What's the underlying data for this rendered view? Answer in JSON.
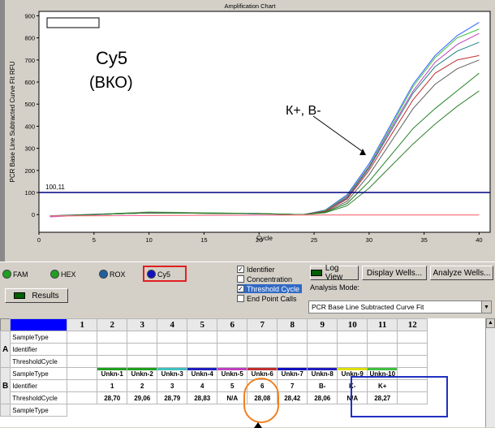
{
  "chart": {
    "title": "Amplification Chart",
    "ylabel": "PCR Base Line Subtracted Curve Fit RFU",
    "xlabel": "Cycle",
    "threshold_label": "100,11",
    "annotation_cy5": "Cy5",
    "annotation_vko": "(ВКО)",
    "annotation_kplus": "К+, В-",
    "colors": {
      "threshold": "#000080",
      "background": "#ffffff"
    }
  },
  "chart_data": {
    "type": "line",
    "xlabel": "Cycle",
    "ylabel": "PCR Base Line Subtracted Curve Fit RFU",
    "xlim": [
      0,
      41
    ],
    "ylim": [
      -80,
      920
    ],
    "x_ticks": [
      0,
      5,
      10,
      15,
      20,
      25,
      30,
      35,
      40
    ],
    "y_ticks": [
      0,
      100,
      200,
      300,
      400,
      500,
      600,
      700,
      800,
      900
    ],
    "threshold": 100.11,
    "series": [
      {
        "color": "#3060ff",
        "x": [
          1,
          10,
          20,
          24,
          26,
          28,
          30,
          32,
          34,
          36,
          38,
          40
        ],
        "y": [
          -5,
          10,
          5,
          0,
          20,
          90,
          230,
          410,
          590,
          720,
          810,
          870
        ]
      },
      {
        "color": "#40c040",
        "x": [
          1,
          10,
          20,
          24,
          26,
          28,
          30,
          32,
          34,
          36,
          38,
          40
        ],
        "y": [
          -8,
          12,
          5,
          0,
          18,
          85,
          220,
          400,
          580,
          710,
          800,
          840
        ]
      },
      {
        "color": "#c040c0",
        "x": [
          1,
          10,
          20,
          24,
          26,
          28,
          30,
          32,
          34,
          36,
          38,
          40
        ],
        "y": [
          -10,
          10,
          3,
          0,
          15,
          80,
          215,
          390,
          560,
          690,
          770,
          820
        ]
      },
      {
        "color": "#208080",
        "x": [
          1,
          10,
          20,
          24,
          26,
          28,
          30,
          32,
          34,
          36,
          38,
          40
        ],
        "y": [
          -6,
          8,
          4,
          0,
          15,
          75,
          210,
          380,
          550,
          670,
          740,
          780
        ]
      },
      {
        "color": "#c03030",
        "x": [
          1,
          10,
          20,
          24,
          26,
          28,
          30,
          32,
          34,
          36,
          38,
          40
        ],
        "y": [
          -6,
          8,
          4,
          0,
          15,
          70,
          200,
          360,
          520,
          640,
          700,
          720
        ]
      },
      {
        "color": "#606060",
        "x": [
          1,
          10,
          20,
          24,
          26,
          28,
          30,
          32,
          34,
          36,
          38,
          40
        ],
        "y": [
          -6,
          8,
          4,
          0,
          12,
          60,
          180,
          330,
          480,
          590,
          660,
          700
        ]
      },
      {
        "color": "#208020",
        "x": [
          1,
          10,
          20,
          24,
          26,
          28,
          30,
          32,
          34,
          36,
          38,
          40
        ],
        "y": [
          -6,
          8,
          4,
          0,
          10,
          50,
          150,
          270,
          390,
          480,
          560,
          640
        ]
      },
      {
        "color": "#308030",
        "x": [
          1,
          10,
          20,
          24,
          26,
          28,
          30,
          32,
          34,
          36,
          38,
          40
        ],
        "y": [
          -6,
          8,
          4,
          0,
          8,
          40,
          120,
          220,
          320,
          410,
          490,
          560
        ]
      },
      {
        "color": "#e0e000",
        "x": [
          1,
          10,
          20,
          24,
          26,
          28,
          30,
          32,
          34,
          36,
          38,
          40
        ],
        "y": [
          -6,
          -4,
          -3,
          -2,
          -1,
          -1,
          -1,
          -1,
          -1,
          -1,
          -1,
          -1
        ]
      },
      {
        "color": "#ff60a0",
        "x": [
          1,
          10,
          20,
          24,
          26,
          28,
          30,
          32,
          34,
          36,
          38,
          40
        ],
        "y": [
          -6,
          -4,
          -3,
          -2,
          -2,
          -2,
          -2,
          -2,
          -2,
          -2,
          -2,
          -2
        ]
      }
    ]
  },
  "channels": [
    {
      "label": "FAM",
      "color": "#20a020"
    },
    {
      "label": "HEX",
      "color": "#20a020"
    },
    {
      "label": "ROX",
      "color": "#2060a0"
    },
    {
      "label": "Cy5",
      "color": "#1010c0"
    }
  ],
  "checkboxes": [
    {
      "label": "Identifier",
      "checked": true
    },
    {
      "label": "Concentration",
      "checked": false
    },
    {
      "label": "Threshold Cycle",
      "checked": true
    },
    {
      "label": "End Point Calls",
      "checked": false
    }
  ],
  "buttons": {
    "log_view": "Log View",
    "display_wells": "Display Wells...",
    "analyze_wells": "Analyze Wells...",
    "results": "Results"
  },
  "analysis_mode": {
    "label": "Analysis Mode:",
    "value": "PCR Base Line Subtracted Curve Fit"
  },
  "table": {
    "plus": "+",
    "columns": [
      "1",
      "2",
      "3",
      "4",
      "5",
      "6",
      "7",
      "8",
      "9",
      "10",
      "11",
      "12"
    ],
    "row_labels": [
      "SampleType",
      "Identifier",
      "ThresholdCycle"
    ],
    "rows": [
      {
        "letter": "A",
        "sample_type": [
          "",
          "",
          "",
          "",
          "",
          "",
          "",
          "",
          "",
          "",
          "",
          ""
        ],
        "identifier": [
          "",
          "",
          "",
          "",
          "",
          "",
          "",
          "",
          "",
          "",
          "",
          ""
        ],
        "threshold": [
          "",
          "",
          "",
          "",
          "",
          "",
          "",
          "",
          "",
          "",
          "",
          ""
        ]
      },
      {
        "letter": "B",
        "sample_type": [
          "",
          "Unkn-1",
          "Unkn-2",
          "Unkn-3",
          "Unkn-4",
          "Unkn-5",
          "Unkn-6",
          "Unkn-7",
          "Unkn-8",
          "Unkn-9",
          "Unkn-10",
          ""
        ],
        "identifier": [
          "",
          "1",
          "2",
          "3",
          "4",
          "5",
          "6",
          "7",
          "B-",
          "K-",
          "K+",
          ""
        ],
        "threshold": [
          "",
          "28,70",
          "29,06",
          "28,79",
          "28,83",
          "N/A",
          "28,08",
          "28,42",
          "28,06",
          "N/A",
          "28,27",
          ""
        ],
        "bar_colors": [
          "",
          "#20a020",
          "#20a020",
          "#40c0c0",
          "#2020c0",
          "#c040c0",
          "#c03030",
          "#1010c0",
          "#2020c0",
          "#e0e000",
          "#40c040",
          ""
        ]
      }
    ],
    "next_row_label": "SampleType"
  }
}
